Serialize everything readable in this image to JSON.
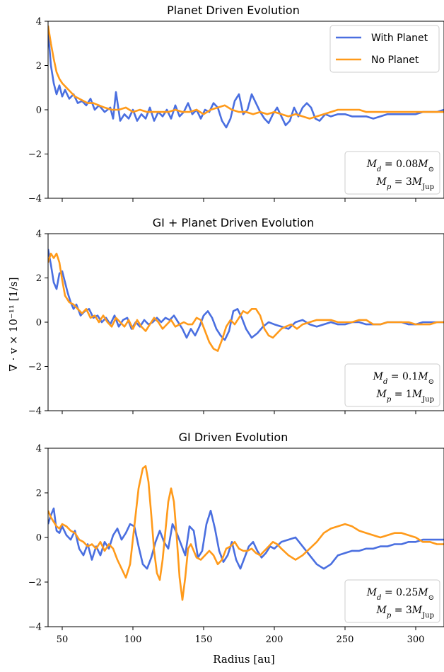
{
  "figure": {
    "ylabel": "∇ · v × 10⁻¹¹ [1/s]",
    "xlabel": "Radius [au]",
    "colors": {
      "with_planet": "#4a6fe0",
      "no_planet": "#ff9a1a"
    }
  },
  "chart_data": [
    {
      "type": "line",
      "title": "Planet Driven Evolution",
      "xlim": [
        40,
        320
      ],
      "ylim": [
        -4,
        4
      ],
      "xticks": [
        50,
        100,
        150,
        200,
        250,
        300
      ],
      "yticks": [
        -4,
        -2,
        0,
        2,
        4
      ],
      "show_xtick_labels": false,
      "legend": {
        "placement": "top-right",
        "entries": [
          "With Planet",
          "No Planet"
        ]
      },
      "annotation": [
        "M_d = 0.08M_⊙",
        "M_p = 3M_Jup"
      ],
      "series": [
        {
          "name": "With Planet",
          "color": "#4a6fe0",
          "x": [
            40,
            42,
            44,
            46,
            48,
            50,
            52,
            55,
            58,
            61,
            64,
            67,
            70,
            73,
            76,
            80,
            84,
            86,
            88,
            91,
            94,
            97,
            100,
            103,
            106,
            109,
            112,
            115,
            118,
            121,
            124,
            127,
            130,
            133,
            136,
            139,
            142,
            145,
            148,
            151,
            154,
            157,
            160,
            163,
            166,
            169,
            172,
            175,
            178,
            181,
            184,
            187,
            190,
            193,
            196,
            199,
            202,
            205,
            208,
            211,
            214,
            217,
            220,
            223,
            226,
            229,
            232,
            236,
            240,
            245,
            250,
            255,
            260,
            265,
            270,
            275,
            280,
            285,
            290,
            295,
            300,
            305,
            310,
            315,
            320
          ],
          "y": [
            3.6,
            2.0,
            1.2,
            0.7,
            1.1,
            0.6,
            0.9,
            0.5,
            0.7,
            0.3,
            0.4,
            0.2,
            0.5,
            0.0,
            0.2,
            -0.1,
            0.1,
            -0.4,
            0.8,
            -0.5,
            -0.2,
            -0.4,
            0.0,
            -0.5,
            -0.2,
            -0.4,
            0.1,
            -0.5,
            -0.1,
            -0.3,
            0.0,
            -0.4,
            0.2,
            -0.3,
            -0.1,
            0.3,
            -0.2,
            0.0,
            -0.4,
            0.0,
            -0.1,
            0.3,
            0.1,
            -0.5,
            -0.8,
            -0.4,
            0.4,
            0.7,
            -0.2,
            0.0,
            0.7,
            0.3,
            -0.1,
            -0.4,
            -0.6,
            -0.2,
            0.1,
            -0.3,
            -0.7,
            -0.5,
            0.1,
            -0.3,
            0.1,
            0.3,
            0.1,
            -0.4,
            -0.5,
            -0.2,
            -0.3,
            -0.2,
            -0.2,
            -0.3,
            -0.3,
            -0.3,
            -0.4,
            -0.3,
            -0.2,
            -0.2,
            -0.2,
            -0.2,
            -0.2,
            -0.1,
            -0.1,
            -0.1,
            0.0
          ]
        },
        {
          "name": "No Planet",
          "color": "#ff9a1a",
          "x": [
            40,
            42,
            44,
            46,
            48,
            50,
            53,
            56,
            59,
            62,
            65,
            68,
            72,
            76,
            80,
            85,
            90,
            95,
            100,
            105,
            110,
            115,
            120,
            125,
            130,
            135,
            140,
            145,
            150,
            155,
            160,
            165,
            170,
            175,
            180,
            185,
            190,
            195,
            200,
            205,
            210,
            215,
            220,
            225,
            230,
            235,
            240,
            245,
            250,
            255,
            260,
            265,
            270,
            275,
            280,
            285,
            290,
            295,
            300,
            305,
            310,
            315,
            320
          ],
          "y": [
            3.8,
            3.0,
            2.3,
            1.7,
            1.4,
            1.2,
            1.0,
            0.8,
            0.6,
            0.5,
            0.4,
            0.3,
            0.3,
            0.2,
            0.1,
            0.0,
            0.0,
            0.1,
            -0.1,
            0.0,
            -0.1,
            -0.1,
            -0.1,
            -0.1,
            0.0,
            -0.1,
            -0.1,
            0.0,
            -0.2,
            0.0,
            0.1,
            0.2,
            0.0,
            -0.1,
            -0.1,
            -0.2,
            -0.1,
            -0.2,
            -0.1,
            -0.2,
            -0.3,
            -0.2,
            -0.3,
            -0.4,
            -0.3,
            -0.2,
            -0.1,
            0.0,
            0.0,
            0.0,
            0.0,
            -0.1,
            -0.1,
            -0.1,
            -0.1,
            -0.1,
            -0.1,
            -0.1,
            -0.1,
            -0.1,
            -0.1,
            -0.1,
            -0.1
          ]
        }
      ]
    },
    {
      "type": "line",
      "title": "GI + Planet Driven Evolution",
      "xlim": [
        40,
        320
      ],
      "ylim": [
        -4,
        4
      ],
      "xticks": [
        50,
        100,
        150,
        200,
        250,
        300
      ],
      "yticks": [
        -4,
        -2,
        0,
        2,
        4
      ],
      "show_xtick_labels": false,
      "legend": null,
      "annotation": [
        "M_d = 0.1M_⊙",
        "M_p = 1M_Jup"
      ],
      "series": [
        {
          "name": "With Planet",
          "color": "#4a6fe0",
          "x": [
            40,
            42,
            44,
            46,
            48,
            50,
            52,
            54,
            56,
            58,
            60,
            63,
            66,
            69,
            72,
            75,
            78,
            81,
            84,
            87,
            90,
            93,
            96,
            99,
            102,
            105,
            108,
            111,
            114,
            117,
            120,
            123,
            126,
            129,
            132,
            135,
            138,
            141,
            144,
            147,
            150,
            153,
            156,
            159,
            162,
            165,
            168,
            171,
            174,
            177,
            180,
            184,
            188,
            192,
            196,
            200,
            205,
            210,
            215,
            220,
            225,
            230,
            235,
            240,
            245,
            250,
            255,
            260,
            265,
            270,
            275,
            280,
            285,
            290,
            295,
            300,
            305,
            310,
            315,
            320
          ],
          "y": [
            3.3,
            2.6,
            1.8,
            1.5,
            2.2,
            2.3,
            1.8,
            1.3,
            0.9,
            0.6,
            0.8,
            0.3,
            0.5,
            0.6,
            0.2,
            0.3,
            0.0,
            0.2,
            -0.1,
            0.3,
            -0.2,
            0.1,
            0.2,
            -0.3,
            0.0,
            -0.2,
            0.1,
            -0.1,
            0.0,
            0.2,
            0.0,
            0.2,
            0.1,
            0.3,
            0.0,
            -0.3,
            -0.7,
            -0.3,
            -0.6,
            -0.2,
            0.3,
            0.5,
            0.2,
            -0.3,
            -0.6,
            -0.8,
            -0.4,
            0.5,
            0.6,
            0.2,
            -0.3,
            -0.7,
            -0.5,
            -0.2,
            0.0,
            -0.1,
            -0.2,
            -0.3,
            0.0,
            0.1,
            -0.1,
            -0.2,
            -0.1,
            0.0,
            -0.1,
            -0.1,
            0.0,
            0.0,
            -0.1,
            -0.1,
            -0.1,
            0.0,
            0.0,
            0.0,
            -0.1,
            -0.1,
            0.0,
            0.0,
            0.0,
            0.0
          ]
        },
        {
          "name": "No Planet",
          "color": "#ff9a1a",
          "x": [
            40,
            42,
            44,
            46,
            48,
            50,
            52,
            55,
            58,
            61,
            64,
            67,
            70,
            73,
            76,
            79,
            82,
            85,
            88,
            91,
            94,
            97,
            100,
            103,
            106,
            109,
            112,
            115,
            118,
            121,
            124,
            127,
            130,
            133,
            136,
            139,
            142,
            145,
            148,
            151,
            154,
            157,
            160,
            163,
            166,
            169,
            172,
            175,
            178,
            181,
            184,
            187,
            190,
            193,
            196,
            199,
            202,
            205,
            208,
            212,
            216,
            220,
            225,
            230,
            235,
            240,
            245,
            250,
            255,
            260,
            265,
            270,
            275,
            280,
            285,
            290,
            295,
            300,
            305,
            310,
            315,
            320
          ],
          "y": [
            2.7,
            3.1,
            2.9,
            3.1,
            2.7,
            1.9,
            1.2,
            0.9,
            0.8,
            0.6,
            0.4,
            0.6,
            0.2,
            0.3,
            0.0,
            0.3,
            0.0,
            -0.2,
            0.2,
            0.0,
            -0.2,
            0.1,
            -0.3,
            0.1,
            -0.2,
            -0.4,
            -0.1,
            0.2,
            0.0,
            -0.3,
            -0.1,
            0.1,
            -0.2,
            -0.1,
            0.0,
            -0.1,
            -0.1,
            0.2,
            0.1,
            -0.4,
            -0.9,
            -1.2,
            -1.3,
            -0.8,
            -0.2,
            0.1,
            -0.1,
            0.2,
            0.5,
            0.4,
            0.6,
            0.6,
            0.3,
            -0.3,
            -0.6,
            -0.7,
            -0.5,
            -0.3,
            -0.2,
            -0.1,
            -0.3,
            -0.1,
            0.0,
            0.1,
            0.1,
            0.1,
            0.0,
            0.0,
            0.0,
            0.1,
            0.1,
            -0.1,
            -0.1,
            0.0,
            0.0,
            0.0,
            0.0,
            -0.1,
            -0.1,
            -0.1,
            0.0,
            0.0
          ]
        }
      ]
    },
    {
      "type": "line",
      "title": "GI Driven Evolution",
      "xlim": [
        40,
        320
      ],
      "ylim": [
        -4,
        4
      ],
      "xticks": [
        50,
        100,
        150,
        200,
        250,
        300
      ],
      "yticks": [
        -4,
        -2,
        0,
        2,
        4
      ],
      "show_xtick_labels": true,
      "legend": null,
      "annotation": [
        "M_d = 0.25M_⊙",
        "M_p = 3M_Jup"
      ],
      "series": [
        {
          "name": "With Planet",
          "color": "#4a6fe0",
          "x": [
            40,
            42,
            44,
            46,
            48,
            50,
            53,
            56,
            59,
            62,
            65,
            68,
            71,
            74,
            77,
            80,
            83,
            86,
            89,
            92,
            95,
            98,
            101,
            104,
            107,
            110,
            113,
            116,
            119,
            122,
            125,
            128,
            131,
            134,
            137,
            140,
            143,
            146,
            149,
            152,
            155,
            158,
            161,
            164,
            167,
            170,
            173,
            176,
            179,
            182,
            185,
            188,
            191,
            194,
            197,
            200,
            205,
            210,
            215,
            220,
            225,
            230,
            235,
            240,
            245,
            250,
            255,
            260,
            265,
            270,
            275,
            280,
            285,
            290,
            295,
            300,
            305,
            310,
            315,
            320
          ],
          "y": [
            0.6,
            1.0,
            1.3,
            0.3,
            0.2,
            0.5,
            0.1,
            -0.1,
            0.3,
            -0.5,
            -0.8,
            -0.3,
            -1.0,
            -0.4,
            -0.8,
            -0.2,
            -0.5,
            0.1,
            0.4,
            -0.1,
            0.2,
            0.6,
            0.5,
            -0.4,
            -1.2,
            -1.4,
            -0.9,
            -0.2,
            0.3,
            -0.2,
            -0.5,
            0.6,
            0.2,
            -0.3,
            -0.8,
            0.5,
            0.3,
            -0.9,
            -0.6,
            0.6,
            1.2,
            0.4,
            -0.6,
            -1.1,
            -0.8,
            -0.2,
            -1.0,
            -1.4,
            -0.9,
            -0.4,
            -0.2,
            -0.6,
            -0.9,
            -0.7,
            -0.4,
            -0.5,
            -0.2,
            -0.1,
            0.0,
            -0.4,
            -0.8,
            -1.2,
            -1.4,
            -1.2,
            -0.8,
            -0.7,
            -0.6,
            -0.6,
            -0.5,
            -0.5,
            -0.4,
            -0.4,
            -0.3,
            -0.3,
            -0.2,
            -0.2,
            -0.1,
            -0.1,
            -0.1,
            -0.1
          ]
        },
        {
          "name": "No Planet",
          "color": "#ff9a1a",
          "x": [
            40,
            42,
            44,
            46,
            48,
            50,
            53,
            56,
            59,
            62,
            65,
            68,
            71,
            74,
            77,
            80,
            83,
            86,
            89,
            92,
            95,
            98,
            101,
            104,
            107,
            109,
            111,
            113,
            115,
            117,
            119,
            121,
            123,
            125,
            127,
            129,
            131,
            133,
            135,
            137,
            139,
            141,
            143,
            145,
            148,
            151,
            154,
            157,
            160,
            163,
            166,
            169,
            172,
            175,
            178,
            181,
            184,
            187,
            190,
            193,
            196,
            199,
            202,
            205,
            210,
            215,
            220,
            225,
            230,
            235,
            240,
            245,
            250,
            255,
            260,
            265,
            270,
            275,
            280,
            285,
            290,
            295,
            300,
            305,
            310,
            315,
            320
          ],
          "y": [
            1.2,
            0.9,
            0.7,
            0.5,
            0.4,
            0.6,
            0.5,
            0.3,
            0.2,
            -0.1,
            -0.2,
            -0.4,
            -0.3,
            -0.5,
            -0.2,
            -0.6,
            -0.3,
            -0.5,
            -1.0,
            -1.4,
            -1.8,
            -1.2,
            0.5,
            2.2,
            3.1,
            3.2,
            2.5,
            1.0,
            -0.6,
            -1.6,
            -1.9,
            -1.0,
            0.3,
            1.6,
            2.2,
            1.6,
            0.0,
            -1.8,
            -2.8,
            -1.8,
            -0.5,
            -0.3,
            -0.6,
            -0.9,
            -1.0,
            -0.8,
            -0.6,
            -0.8,
            -1.2,
            -1.0,
            -0.5,
            -0.4,
            -0.2,
            -0.5,
            -0.6,
            -0.6,
            -0.5,
            -0.7,
            -0.8,
            -0.6,
            -0.4,
            -0.2,
            -0.3,
            -0.5,
            -0.8,
            -1.0,
            -0.8,
            -0.5,
            -0.2,
            0.2,
            0.4,
            0.5,
            0.6,
            0.5,
            0.3,
            0.2,
            0.1,
            0.0,
            0.1,
            0.2,
            0.2,
            0.1,
            0.0,
            -0.2,
            -0.2,
            -0.3,
            -0.3
          ]
        }
      ]
    }
  ]
}
